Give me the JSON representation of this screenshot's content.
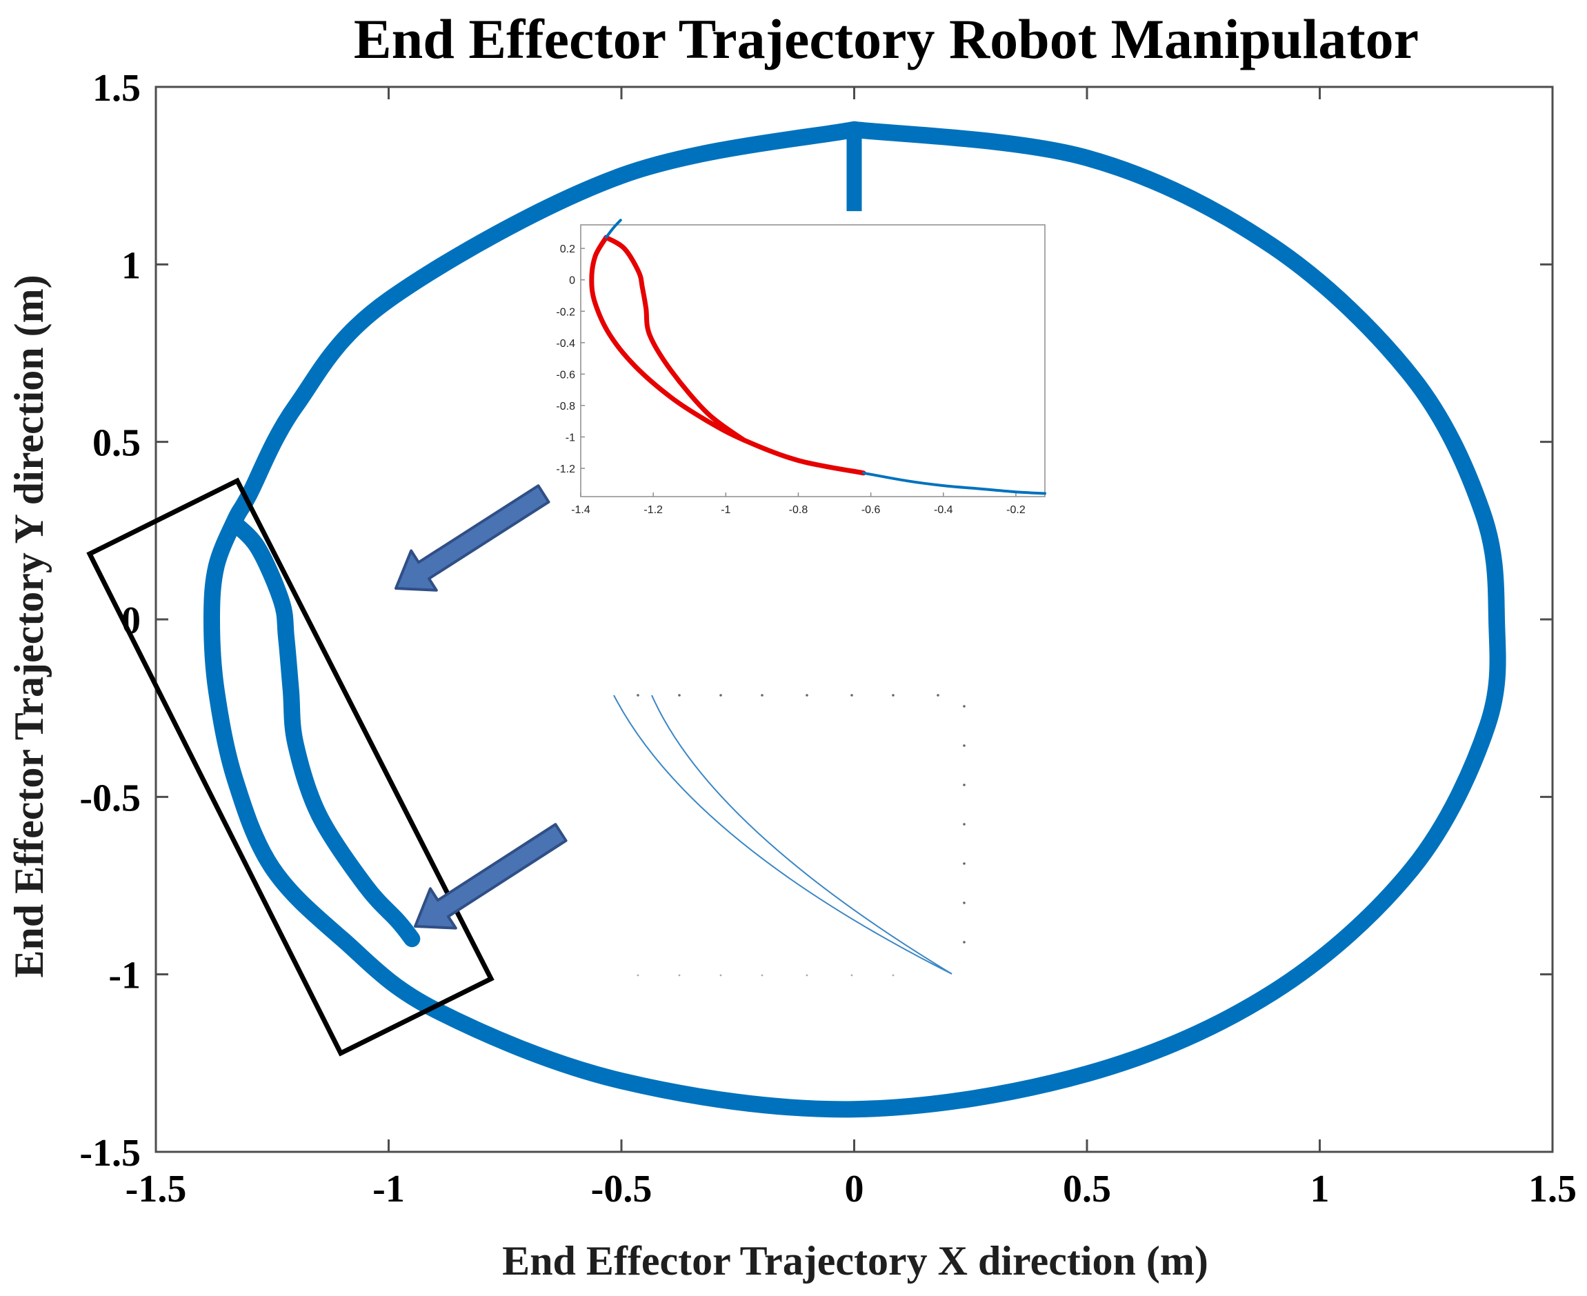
{
  "chart_data": {
    "type": "line",
    "title": "End Effector Trajectory Robot Manipulator",
    "xlabel": "End Effector Trajectory X direction (m)",
    "ylabel": "End Effector Trajectory Y direction (m)",
    "xlim": [
      -1.5,
      1.5
    ],
    "ylim": [
      -1.5,
      1.5
    ],
    "xticks": [
      -1.5,
      -1,
      -0.5,
      0,
      0.5,
      1,
      1.5
    ],
    "yticks": [
      -1.5,
      -1,
      -0.5,
      0,
      0.5,
      1,
      1.5
    ],
    "xtick_labels": [
      "-1.5",
      "-1",
      "-0.5",
      "0",
      "0.5",
      "1",
      "1.5"
    ],
    "ytick_labels": [
      "-1.5",
      "-1",
      "-0.5",
      "0",
      "0.5",
      "1",
      "1.5"
    ],
    "grid": false,
    "series": [
      {
        "color": "#0072bd",
        "x": [
          0,
          0.5,
          0.9,
          1.2,
          1.35,
          1.38,
          1.36,
          1.2,
          0.9,
          0.5,
          0,
          -0.5,
          -0.9,
          -1.1,
          -1.25,
          -1.33,
          -1.37,
          -1.38,
          -1.37,
          -1.33,
          -1.3,
          -1.2,
          -1.0,
          -0.5,
          0
        ],
        "y": [
          1.38,
          1.3,
          1.05,
          0.68,
          0.3,
          0,
          -0.3,
          -0.7,
          -1.05,
          -1.28,
          -1.38,
          -1.3,
          -1.1,
          -0.9,
          -0.7,
          -0.45,
          -0.2,
          0,
          0.15,
          0.28,
          0.35,
          0.6,
          0.9,
          1.25,
          1.38
        ]
      },
      {
        "color": "#0072bd",
        "x": [
          -1.33,
          -1.28,
          -1.23,
          -1.22,
          -1.21,
          -1.2,
          -1.15,
          -1.05,
          -0.98,
          -0.95
        ],
        "y": [
          0.27,
          0.2,
          0.05,
          -0.05,
          -0.2,
          -0.35,
          -0.55,
          -0.75,
          -0.85,
          -0.9
        ]
      },
      {
        "color": "#0072bd",
        "x": [
          0,
          0
        ],
        "y": [
          1.38,
          1.15
        ]
      }
    ],
    "annotations": [
      {
        "type": "inset",
        "series": [
          {
            "color": "#e60000",
            "x": [
              -1.33,
              -1.36,
              -1.37,
              -1.36,
              -1.32,
              -1.25,
              -1.15,
              -1.05,
              -0.95,
              -0.8,
              -0.62
            ],
            "y": [
              0.27,
              0.15,
              0,
              -0.15,
              -0.35,
              -0.55,
              -0.75,
              -0.9,
              -1.02,
              -1.15,
              -1.23
            ]
          },
          {
            "color": "#e60000",
            "x": [
              -1.33,
              -1.28,
              -1.24,
              -1.23,
              -1.22,
              -1.21,
              -1.15,
              -1.05,
              -0.95
            ],
            "y": [
              0.27,
              0.2,
              0.05,
              -0.05,
              -0.18,
              -0.35,
              -0.58,
              -0.85,
              -1.02
            ]
          },
          {
            "color": "#0072bd",
            "x": [
              -0.62,
              -0.5,
              -0.4,
              -0.3,
              -0.2,
              -0.12
            ],
            "y": [
              -1.23,
              -1.28,
              -1.31,
              -1.33,
              -1.35,
              -1.36
            ]
          },
          {
            "color": "#0072bd",
            "x": [
              -1.33,
              -1.31,
              -1.29
            ],
            "y": [
              0.27,
              0.33,
              0.38
            ]
          }
        ],
        "xlim": [
          -1.4,
          -0.12
        ],
        "ylim": [
          -1.38,
          0.35
        ],
        "xtick_labels": [
          "-1.4",
          "-1.2",
          "-1",
          "-0.8",
          "-0.6",
          "-0.4",
          "-0.2"
        ],
        "ytick_labels": [
          "0.2",
          "0",
          "-0.2",
          "-0.4",
          "-0.6",
          "-0.8",
          "-1",
          "-1.2"
        ]
      }
    ]
  }
}
